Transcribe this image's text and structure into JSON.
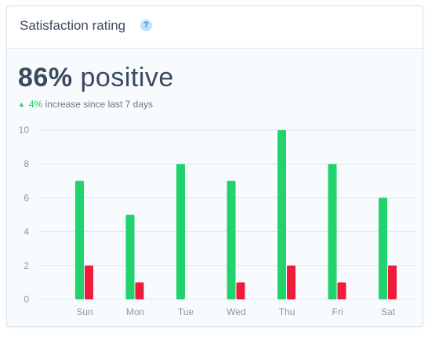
{
  "header": {
    "title": "Satisfaction rating",
    "help_icon": "help-circle-icon"
  },
  "summary": {
    "percent": "86%",
    "label": "positive",
    "trend_arrow": "▲",
    "trend_value": "4%",
    "trend_text": "increase since last 7 days"
  },
  "colors": {
    "positive": "#22d26d",
    "negative": "#ef1d3c",
    "grid": "#dce6ee",
    "accent": "#2f86d6"
  },
  "chart_data": {
    "type": "bar",
    "title": "",
    "xlabel": "",
    "ylabel": "",
    "ylim": [
      0,
      10
    ],
    "yticks": [
      "0",
      "2",
      "4",
      "6",
      "8",
      "10"
    ],
    "categories": [
      "Sun",
      "Mon",
      "Tue",
      "Wed",
      "Thu",
      "Fri",
      "Sat"
    ],
    "series": [
      {
        "values": [
          7,
          5,
          8,
          7,
          10,
          8,
          6
        ],
        "color": "#22d26d"
      },
      {
        "values": [
          2,
          1,
          0,
          1,
          2,
          1,
          2
        ],
        "color": "#ef1d3c"
      }
    ],
    "grid": true,
    "legend": "none"
  }
}
